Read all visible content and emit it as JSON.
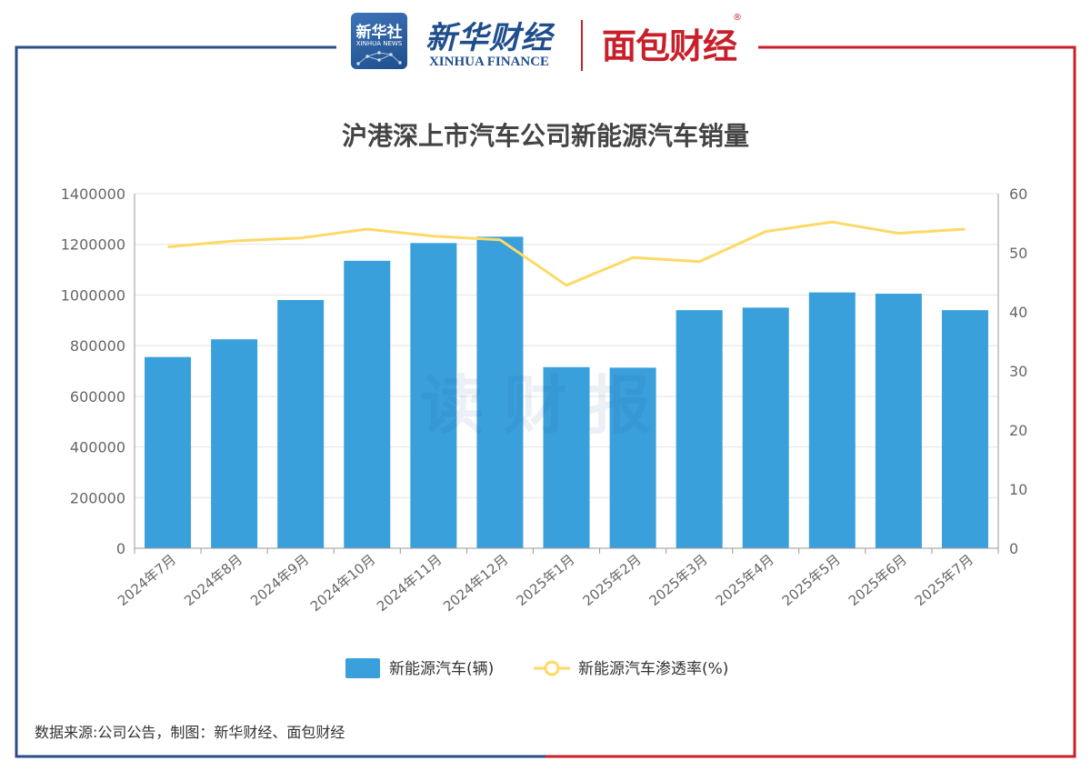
{
  "header": {
    "xinhua_logo_line1": "新华社",
    "xinhua_logo_line2": "XINHUA NEWS",
    "xinhua_finance_cn": "新华财经",
    "xinhua_finance_en": "XINHUA FINANCE",
    "mianbao": "面包财经",
    "reg_mark": "®"
  },
  "watermark": "读财报",
  "source": "数据来源:公司公告，制图：新华财经、面包财经",
  "colors": {
    "bar": "#3aa0dc",
    "line": "#ffd966",
    "frame_left": "#2b4e8a",
    "frame_right": "#c8202a",
    "axis_text": "#666666",
    "grid": "#e3e3e3"
  },
  "chart_data": {
    "type": "bar",
    "title": "沪港深上市汽车公司新能源汽车销量",
    "categories": [
      "2024年7月",
      "2024年8月",
      "2024年9月",
      "2024年10月",
      "2024年11月",
      "2024年12月",
      "2025年1月",
      "2025年2月",
      "2025年3月",
      "2025年4月",
      "2025年5月",
      "2025年6月",
      "2025年7月"
    ],
    "series": [
      {
        "name": "新能源汽车(辆)",
        "type": "bar",
        "axis": "left",
        "values": [
          755000,
          825000,
          980000,
          1135000,
          1205000,
          1230000,
          715000,
          713000,
          940000,
          950000,
          1010000,
          1005000,
          940000
        ]
      },
      {
        "name": "新能源汽车渗透率(%)",
        "type": "line",
        "axis": "right",
        "values": [
          51.0,
          52.0,
          52.5,
          54.0,
          52.8,
          52.2,
          44.5,
          49.2,
          48.5,
          53.6,
          55.2,
          53.3,
          54.0
        ]
      }
    ],
    "y_left": {
      "min": 0,
      "max": 1400000,
      "ticks": [
        "0",
        "200000",
        "400000",
        "600000",
        "800000",
        "1000000",
        "1200000",
        "1400000"
      ]
    },
    "y_right": {
      "min": 0,
      "max": 60,
      "ticks": [
        "0",
        "10",
        "20",
        "30",
        "40",
        "50",
        "60"
      ]
    },
    "legend_position": "bottom-center",
    "grid": true
  }
}
